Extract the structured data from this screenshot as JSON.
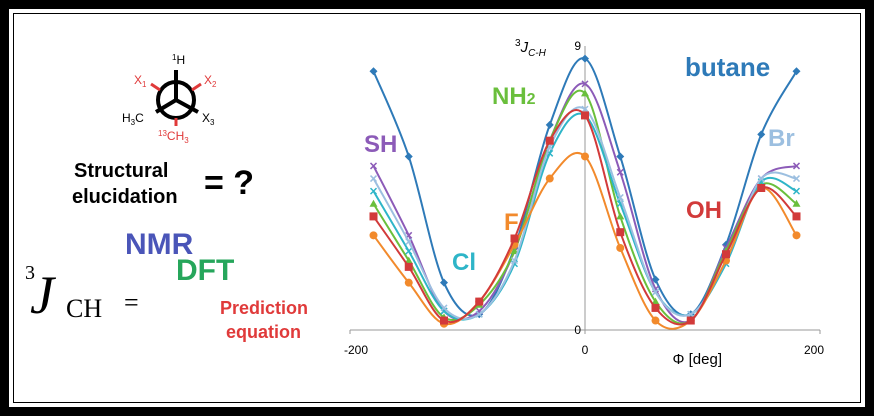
{
  "newman": {
    "front_atom": "H",
    "front_atom_sup": "1",
    "left_sub": "H3C",
    "x1": "X1",
    "x2": "X2",
    "x3": "X3",
    "ch3": "CH3",
    "ch3_sup": "13",
    "colors": {
      "highlight": "#e03a3a",
      "bond": "#000000"
    }
  },
  "question": {
    "line1": "Structural",
    "line2": "elucidation",
    "equals": "= ?"
  },
  "equation": {
    "sup": "3",
    "J": "J",
    "sub": "CH",
    "eq": "=",
    "nmr": "NMR",
    "dft": "DFT",
    "pred_line1": "Prediction",
    "pred_line2": "equation",
    "colors": {
      "nmr": "#4a55b8",
      "dft": "#26a65b",
      "pred": "#e03a3a"
    }
  },
  "chart_data": {
    "type": "line",
    "ylabel_sup": "3",
    "ylabel": "J",
    "ylabel_sub": "C-H",
    "xlabel": "Φ [deg]",
    "xticks": [
      -200,
      0,
      200
    ],
    "yticks": [
      0,
      9
    ],
    "xlim": [
      -200,
      200
    ],
    "ylim": [
      0,
      9
    ],
    "series": [
      {
        "name": "butane",
        "color": "#2e7ab8",
        "label_color": "#2e7ab8",
        "x": [
          -180,
          -150,
          -120,
          -90,
          -60,
          -30,
          0,
          30,
          60,
          90,
          120,
          150,
          180
        ],
        "y": [
          8.2,
          5.5,
          1.5,
          0.5,
          2.6,
          6.5,
          8.6,
          5.5,
          1.6,
          0.5,
          2.7,
          6.2,
          8.2
        ]
      },
      {
        "name": "SH",
        "color": "#8c5bb8",
        "label_color": "#8c5bb8",
        "x": [
          -180,
          -150,
          -120,
          -90,
          -60,
          -30,
          0,
          30,
          60,
          90,
          120,
          150,
          180
        ],
        "y": [
          5.2,
          3.0,
          0.6,
          0.6,
          2.5,
          6.0,
          7.8,
          5.0,
          1.3,
          0.3,
          2.6,
          4.8,
          5.2
        ]
      },
      {
        "name": "NH2",
        "color": "#6abf3c",
        "label_color": "#6abf3c",
        "x": [
          -180,
          -150,
          -120,
          -90,
          -60,
          -30,
          0,
          30,
          60,
          90,
          120,
          150,
          180
        ],
        "y": [
          4.0,
          2.2,
          0.4,
          0.8,
          2.5,
          6.0,
          7.5,
          3.6,
          0.9,
          0.3,
          2.5,
          4.6,
          4.0
        ]
      },
      {
        "name": "Cl",
        "color": "#2eb5c8",
        "label_color": "#2eb5c8",
        "x": [
          -180,
          -150,
          -120,
          -90,
          -60,
          -30,
          0,
          30,
          60,
          90,
          120,
          150,
          180
        ],
        "y": [
          4.4,
          2.5,
          0.6,
          0.5,
          2.1,
          5.6,
          6.8,
          4.0,
          1.2,
          0.5,
          2.1,
          4.7,
          4.4
        ]
      },
      {
        "name": "Br",
        "color": "#9cbfe0",
        "label_color": "#9cbfe0",
        "x": [
          -180,
          -150,
          -120,
          -90,
          -60,
          -30,
          0,
          30,
          60,
          90,
          120,
          150,
          180
        ],
        "y": [
          4.8,
          2.8,
          0.7,
          0.5,
          2.2,
          5.8,
          7.0,
          4.2,
          1.2,
          0.5,
          2.2,
          4.8,
          4.8
        ]
      },
      {
        "name": "F",
        "color": "#f28a2c",
        "label_color": "#f28a2c",
        "x": [
          -180,
          -150,
          -120,
          -90,
          -60,
          -30,
          0,
          30,
          60,
          90,
          120,
          150,
          180
        ],
        "y": [
          3.0,
          1.5,
          0.2,
          0.9,
          2.7,
          4.8,
          5.5,
          2.6,
          0.3,
          0.3,
          2.2,
          4.5,
          3.0
        ]
      },
      {
        "name": "OH",
        "color": "#d23a3a",
        "label_color": "#d23a3a",
        "x": [
          -180,
          -150,
          -120,
          -90,
          -60,
          -30,
          0,
          30,
          60,
          90,
          120,
          150,
          180
        ],
        "y": [
          3.6,
          2.0,
          0.3,
          0.9,
          2.9,
          6.0,
          6.8,
          3.1,
          0.7,
          0.3,
          2.4,
          4.5,
          3.6
        ]
      }
    ]
  }
}
